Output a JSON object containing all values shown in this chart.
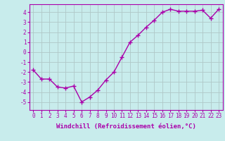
{
  "x": [
    0,
    1,
    2,
    3,
    4,
    5,
    6,
    7,
    8,
    9,
    10,
    11,
    12,
    13,
    14,
    15,
    16,
    17,
    18,
    19,
    20,
    21,
    22,
    23
  ],
  "y": [
    -1.8,
    -2.7,
    -2.7,
    -3.5,
    -3.6,
    -3.4,
    -5.0,
    -4.5,
    -3.8,
    -2.8,
    -2.0,
    -0.5,
    1.0,
    1.7,
    2.5,
    3.2,
    4.0,
    4.3,
    4.1,
    4.1,
    4.1,
    4.2,
    3.4,
    4.3
  ],
  "line_color": "#aa00aa",
  "marker": "+",
  "marker_size": 4,
  "background_color": "#c8ecec",
  "grid_color": "#b0c8c8",
  "xlabel": "Windchill (Refroidissement éolien,°C)",
  "xlabel_fontsize": 6.5,
  "tick_fontsize": 5.5,
  "xlim": [
    -0.5,
    23.5
  ],
  "ylim": [
    -5.8,
    4.8
  ],
  "yticks": [
    -5,
    -4,
    -3,
    -2,
    -1,
    0,
    1,
    2,
    3,
    4
  ],
  "xticks": [
    0,
    1,
    2,
    3,
    4,
    5,
    6,
    7,
    8,
    9,
    10,
    11,
    12,
    13,
    14,
    15,
    16,
    17,
    18,
    19,
    20,
    21,
    22,
    23
  ],
  "spine_color": "#aa00aa",
  "linewidth": 1.0
}
